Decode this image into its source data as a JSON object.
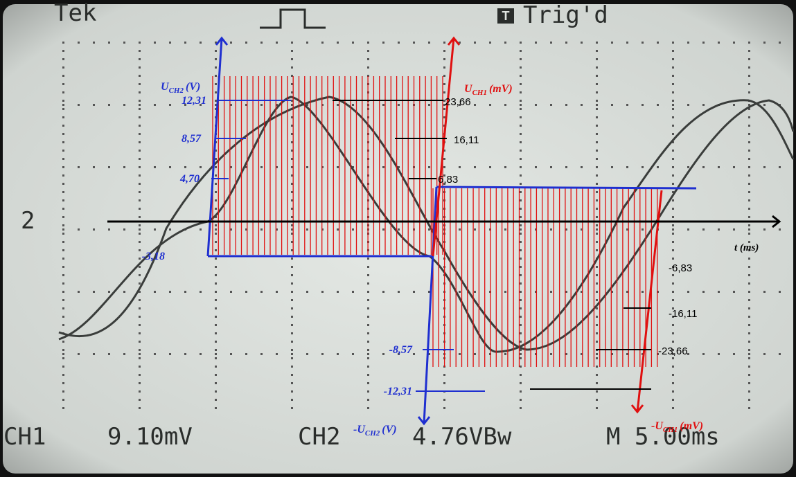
{
  "screen": {
    "brand": "Tek",
    "trigger_icon": "T",
    "trigger": "Trig'd",
    "marker": "2",
    "ch1": "CH1",
    "ch1_scale": "9.10mV",
    "ch2": "CH2",
    "ch2_scale": "4.76VBw",
    "timebase": "M 5.00ms"
  },
  "axes": {
    "u_ch2": {
      "symbol": "U",
      "subscript": "CH2",
      "unit": "(V)"
    },
    "u_ch1": {
      "symbol": "U",
      "subscript": "CH1",
      "unit": "(mV)"
    },
    "neg_u_ch2": {
      "symbol": "-U",
      "subscript": "CH2",
      "unit": "(V)"
    },
    "neg_u_ch1": {
      "symbol": "-U",
      "subscript": "CH1",
      "unit": "(mV)"
    },
    "time": "t (ms)"
  },
  "ch2_levels": [
    "12,31",
    "8,57",
    "4,70",
    "-3,18",
    "-8,57",
    "-12,31"
  ],
  "ch1_levels": [
    "23,66",
    "16,11",
    "6,83",
    "-6,83",
    "-16,11",
    "-23,66"
  ]
}
